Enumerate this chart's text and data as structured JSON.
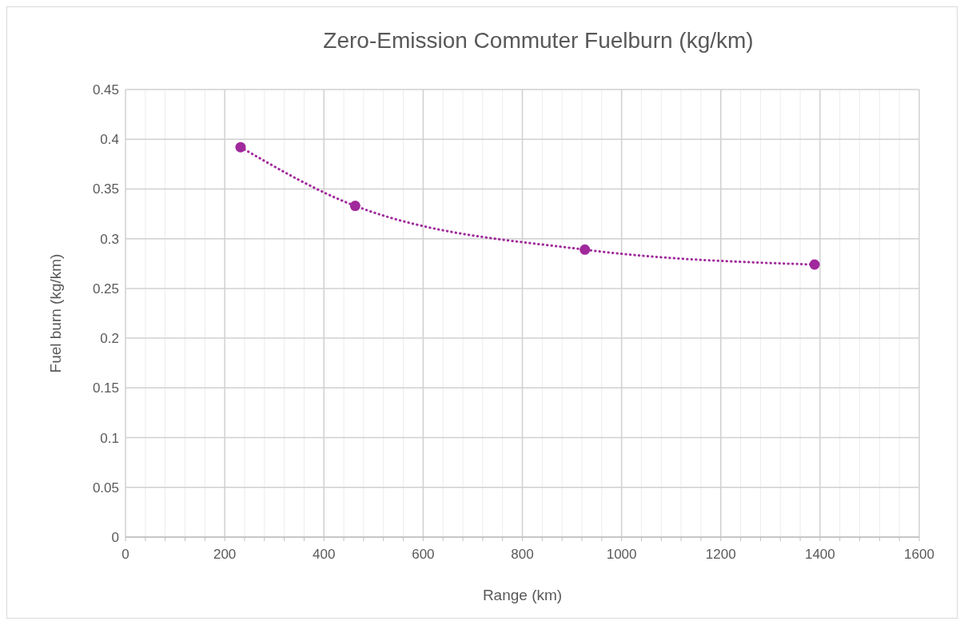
{
  "chart_data": {
    "type": "line",
    "title": "Zero-Emission Commuter Fuelburn (kg/km)",
    "xlabel": "Range (km)",
    "ylabel": "Fuel burn (kg/km)",
    "x": [
      232,
      463,
      926,
      1389
    ],
    "series": [
      {
        "color": "#a0299c",
        "values": [
          0.392,
          0.333,
          0.289,
          0.274
        ]
      }
    ],
    "xlim": [
      0,
      1600
    ],
    "xticks": [
      0,
      {
        "value": 40,
        "label": null
      },
      {
        "value": 80,
        "label": null
      },
      {
        "value": 120,
        "label": null
      },
      {
        "value": 160,
        "label": null
      },
      200,
      {
        "value": 240,
        "label": null
      },
      {
        "value": 280,
        "label": null
      },
      {
        "value": 320,
        "label": null
      },
      {
        "value": 360,
        "label": null
      },
      400,
      {
        "value": 440,
        "label": null
      },
      {
        "value": 480,
        "label": null
      },
      {
        "value": 520,
        "label": null
      },
      {
        "value": 560,
        "label": null
      },
      600,
      {
        "value": 640,
        "label": null
      },
      {
        "value": 680,
        "label": null
      },
      {
        "value": 720,
        "label": null
      },
      {
        "value": 760,
        "label": null
      },
      800,
      {
        "value": 840,
        "label": null
      },
      {
        "value": 880,
        "label": null
      },
      {
        "value": 920,
        "label": null
      },
      {
        "value": 960,
        "label": null
      },
      1000,
      {
        "value": 1040,
        "label": null
      },
      {
        "value": 1080,
        "label": null
      },
      {
        "value": 1120,
        "label": null
      },
      {
        "value": 1160,
        "label": null
      },
      1200,
      {
        "value": 1240,
        "label": null
      },
      {
        "value": 1280,
        "label": null
      },
      {
        "value": 1320,
        "label": null
      },
      {
        "value": 1360,
        "label": null
      },
      1400,
      {
        "value": 1440,
        "label": null
      },
      {
        "value": 1480,
        "label": null
      },
      {
        "value": 1520,
        "label": null
      },
      {
        "value": 1560,
        "label": null
      },
      1600
    ],
    "ylim": [
      0,
      0.45
    ],
    "yticks": [
      0,
      0.05,
      0.1,
      0.15,
      0.2,
      0.25,
      0.3,
      0.35,
      0.4,
      0.45
    ],
    "grid": true,
    "marker": "circle",
    "line_style": "dotted"
  }
}
